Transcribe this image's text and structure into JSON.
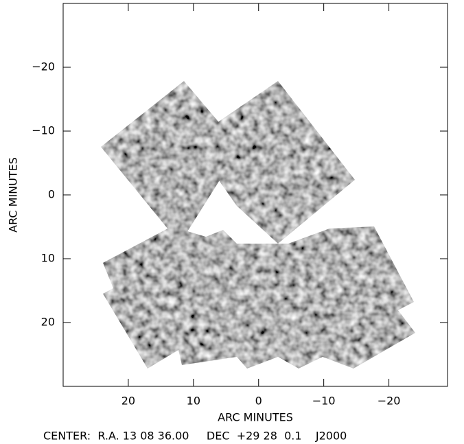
{
  "chart_data": {
    "type": "image",
    "xlabel": "ARC MINUTES",
    "ylabel": "ARC MINUTES",
    "footer": "CENTER:  R.A. 13 08 36.00     DEC  +29 28  0.1    J2000",
    "xlim": [
      30,
      -29
    ],
    "ylim": [
      30,
      -30
    ],
    "xticks": [
      20,
      10,
      0,
      {
        "value": -10,
        "label": "−10"
      },
      {
        "value": -20,
        "label": "−20"
      }
    ],
    "yticks": [
      {
        "value": -20,
        "label": "−20"
      },
      {
        "value": -10,
        "label": "−10"
      },
      0,
      10,
      20
    ]
  }
}
